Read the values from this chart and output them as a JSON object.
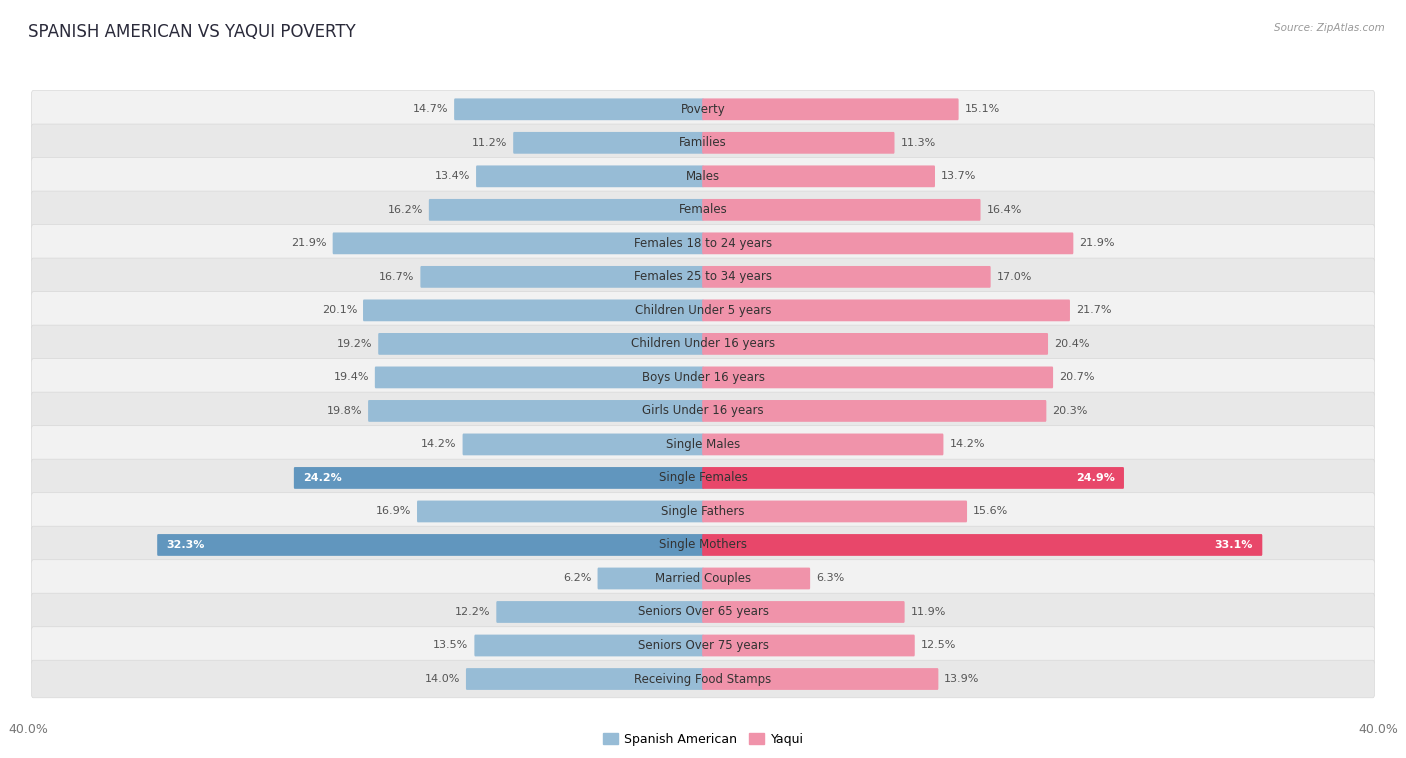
{
  "title": "SPANISH AMERICAN VS YAQUI POVERTY",
  "source": "Source: ZipAtlas.com",
  "categories": [
    "Poverty",
    "Families",
    "Males",
    "Females",
    "Females 18 to 24 years",
    "Females 25 to 34 years",
    "Children Under 5 years",
    "Children Under 16 years",
    "Boys Under 16 years",
    "Girls Under 16 years",
    "Single Males",
    "Single Females",
    "Single Fathers",
    "Single Mothers",
    "Married Couples",
    "Seniors Over 65 years",
    "Seniors Over 75 years",
    "Receiving Food Stamps"
  ],
  "spanish_american": [
    14.7,
    11.2,
    13.4,
    16.2,
    21.9,
    16.7,
    20.1,
    19.2,
    19.4,
    19.8,
    14.2,
    24.2,
    16.9,
    32.3,
    6.2,
    12.2,
    13.5,
    14.0
  ],
  "yaqui": [
    15.1,
    11.3,
    13.7,
    16.4,
    21.9,
    17.0,
    21.7,
    20.4,
    20.7,
    20.3,
    14.2,
    24.9,
    15.6,
    33.1,
    6.3,
    11.9,
    12.5,
    13.9
  ],
  "blue_color": "#97bcd6",
  "pink_color": "#f093aa",
  "blue_highlight": "#6196be",
  "pink_highlight": "#e8476a",
  "row_bg_light": "#f2f2f2",
  "row_bg_dark": "#e8e8e8",
  "row_border": "#d8d8d8",
  "axis_max": 40.0,
  "legend_blue": "Spanish American",
  "legend_pink": "Yaqui",
  "highlight_rows": [
    11,
    13
  ],
  "title_fontsize": 12,
  "label_fontsize": 8.5,
  "value_fontsize": 8.0,
  "tick_fontsize": 9
}
